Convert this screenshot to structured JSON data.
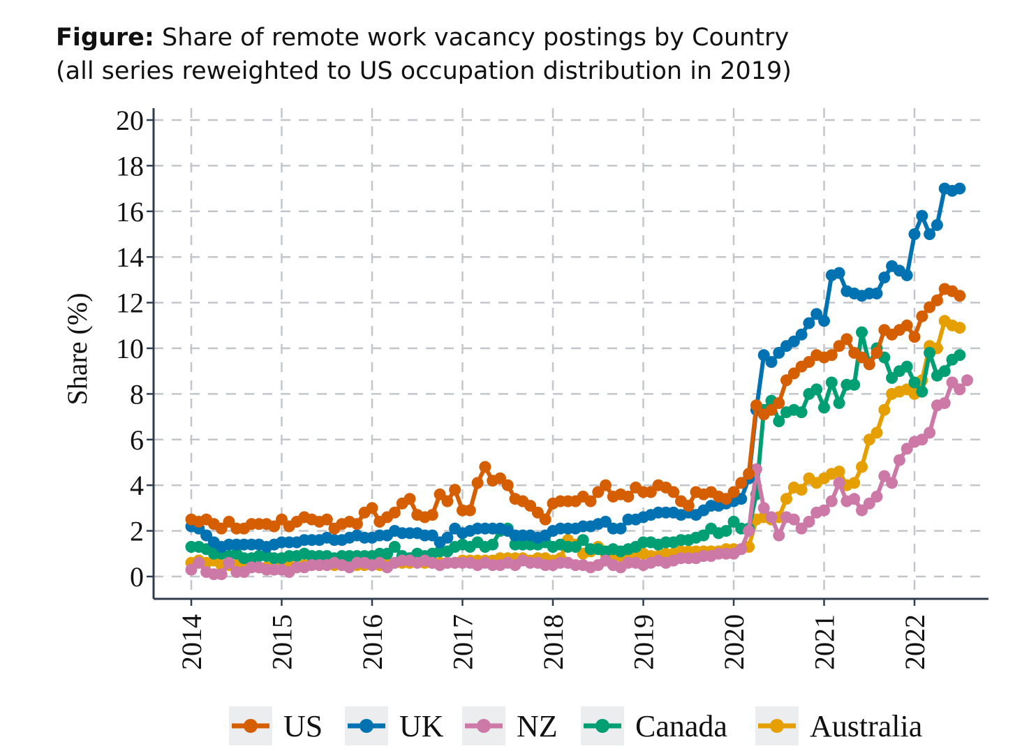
{
  "figure": {
    "title_prefix": "Figure:",
    "title_main": "Share of remote work vacancy postings by Country",
    "subtitle": "(all series reweighted to US occupation distribution in 2019)"
  },
  "chart_data": {
    "type": "line",
    "title": "Share of remote work vacancy postings by Country",
    "subtitle": "(all series reweighted to US occupation distribution in 2019)",
    "xlabel": "",
    "ylabel": "Share (%)",
    "xlim": [
      2014,
      2022.5
    ],
    "ylim": [
      0,
      20
    ],
    "x_ticks": [
      "2014",
      "2015",
      "2016",
      "2017",
      "2018",
      "2019",
      "2020",
      "2021",
      "2022"
    ],
    "y_ticks": [
      "0",
      "2",
      "4",
      "6",
      "8",
      "10",
      "12",
      "14",
      "16",
      "18",
      "20"
    ],
    "grid": true,
    "legend_position": "bottom",
    "x_frequency": "monthly",
    "x_start": "2014-01",
    "series": [
      {
        "name": "US",
        "color": "#d55e00",
        "values": [
          2.5,
          2.4,
          2.5,
          2.3,
          2.1,
          2.4,
          2.1,
          2.1,
          2.3,
          2.3,
          2.3,
          2.2,
          2.5,
          2.2,
          2.4,
          2.6,
          2.5,
          2.4,
          2.5,
          2.1,
          2.3,
          2.4,
          2.3,
          2.8,
          3.0,
          2.4,
          2.6,
          2.8,
          3.2,
          3.4,
          2.7,
          2.6,
          2.7,
          3.6,
          3.3,
          3.8,
          2.9,
          2.9,
          4.1,
          4.8,
          4.2,
          4.3,
          4.0,
          3.4,
          3.3,
          3.1,
          2.8,
          2.5,
          3.2,
          3.3,
          3.3,
          3.3,
          3.5,
          3.3,
          3.7,
          4.0,
          3.5,
          3.6,
          3.5,
          3.9,
          3.7,
          3.7,
          4.0,
          3.9,
          3.7,
          3.3,
          3.1,
          3.7,
          3.6,
          3.7,
          3.5,
          3.4,
          3.7,
          4.1,
          4.5,
          7.5,
          7.1,
          7.3,
          7.6,
          8.6,
          8.9,
          9.2,
          9.4,
          9.7,
          9.6,
          9.7,
          10.1,
          10.4,
          9.8,
          9.6,
          9.3,
          9.8,
          10.8,
          10.6,
          10.8,
          11.0,
          10.5,
          11.4,
          11.8,
          12.1,
          12.6,
          12.5,
          12.3
        ]
      },
      {
        "name": "UK",
        "color": "#0072b2",
        "values": [
          2.2,
          2.1,
          1.8,
          1.5,
          1.3,
          1.4,
          1.4,
          1.4,
          1.4,
          1.4,
          1.3,
          1.4,
          1.5,
          1.5,
          1.5,
          1.6,
          1.6,
          1.6,
          1.7,
          1.6,
          1.6,
          1.7,
          1.8,
          1.7,
          1.7,
          1.8,
          1.8,
          2.0,
          1.9,
          1.9,
          1.9,
          1.8,
          1.8,
          1.5,
          1.7,
          2.1,
          1.9,
          2.0,
          2.1,
          2.1,
          2.1,
          2.1,
          2.0,
          1.8,
          1.8,
          1.8,
          1.7,
          1.8,
          2.0,
          2.1,
          2.1,
          2.1,
          2.2,
          2.2,
          2.3,
          2.4,
          2.1,
          2.1,
          2.5,
          2.5,
          2.6,
          2.7,
          2.8,
          2.8,
          2.8,
          2.7,
          2.8,
          2.7,
          2.9,
          3.1,
          3.1,
          3.2,
          3.3,
          3.4,
          4.3,
          7.3,
          9.7,
          9.4,
          9.8,
          10.1,
          10.3,
          10.6,
          11.1,
          11.5,
          11.2,
          13.2,
          13.3,
          12.5,
          12.4,
          12.3,
          12.4,
          12.4,
          13.1,
          13.6,
          13.4,
          13.2,
          15.0,
          15.8,
          15.0,
          15.4,
          17.0,
          16.9,
          17.0
        ]
      },
      {
        "name": "NZ",
        "color": "#cc79a7",
        "values": [
          0.3,
          0.6,
          0.2,
          0.1,
          0.1,
          0.6,
          0.2,
          0.2,
          0.4,
          0.4,
          0.3,
          0.3,
          0.3,
          0.2,
          0.4,
          0.4,
          0.5,
          0.5,
          0.5,
          0.6,
          0.5,
          0.4,
          0.6,
          0.6,
          0.5,
          0.6,
          0.4,
          0.6,
          0.7,
          0.7,
          0.6,
          0.7,
          0.6,
          0.5,
          0.6,
          0.6,
          0.6,
          0.6,
          0.5,
          0.6,
          0.5,
          0.5,
          0.6,
          0.5,
          0.7,
          0.6,
          0.6,
          0.5,
          0.5,
          0.6,
          0.6,
          0.5,
          0.5,
          0.4,
          0.5,
          0.7,
          0.5,
          0.4,
          0.6,
          0.6,
          0.5,
          0.6,
          0.7,
          0.6,
          0.7,
          0.8,
          0.8,
          0.8,
          0.9,
          0.9,
          1.0,
          1.0,
          1.0,
          1.2,
          2.0,
          4.7,
          3.0,
          2.6,
          1.8,
          2.6,
          2.5,
          2.1,
          2.4,
          2.8,
          2.9,
          3.3,
          4.1,
          3.3,
          3.4,
          2.9,
          3.2,
          3.5,
          4.4,
          4.1,
          5.1,
          5.6,
          5.9,
          6.0,
          6.3,
          7.5,
          7.6,
          8.5,
          8.2,
          8.6
        ]
      },
      {
        "name": "Canada",
        "color": "#009e73",
        "values": [
          1.3,
          1.3,
          1.2,
          1.0,
          1.0,
          0.9,
          1.0,
          0.8,
          0.8,
          0.9,
          0.9,
          0.8,
          0.8,
          0.9,
          0.9,
          1.0,
          0.9,
          0.9,
          0.9,
          0.8,
          0.9,
          0.9,
          0.9,
          0.9,
          0.9,
          1.0,
          1.0,
          1.3,
          0.9,
          0.8,
          1.0,
          0.9,
          1.0,
          1.1,
          1.1,
          1.3,
          1.4,
          1.3,
          1.5,
          1.3,
          1.4,
          2.0,
          2.1,
          1.4,
          1.4,
          1.4,
          1.4,
          1.5,
          1.3,
          1.4,
          1.3,
          1.3,
          1.6,
          1.2,
          1.2,
          1.1,
          1.2,
          1.1,
          1.2,
          1.3,
          1.5,
          1.5,
          1.4,
          1.5,
          1.5,
          1.6,
          1.6,
          1.7,
          1.8,
          2.1,
          1.9,
          2.0,
          2.4,
          2.1,
          2.1,
          3.6,
          7.3,
          7.7,
          6.8,
          7.2,
          7.3,
          7.2,
          8.0,
          8.2,
          7.4,
          8.5,
          7.6,
          8.4,
          8.4,
          10.7,
          9.3,
          10.0,
          9.6,
          8.7,
          9.0,
          9.2,
          8.5,
          8.1,
          9.8,
          8.8,
          9.0,
          9.5,
          9.7
        ]
      },
      {
        "name": "Australia",
        "color": "#e69f00",
        "values": [
          0.6,
          0.7,
          0.6,
          0.7,
          0.5,
          0.5,
          0.5,
          0.6,
          0.5,
          0.4,
          0.4,
          0.4,
          0.4,
          0.5,
          0.4,
          0.5,
          0.5,
          0.5,
          0.5,
          0.5,
          0.5,
          0.5,
          0.5,
          0.5,
          0.5,
          0.5,
          0.6,
          0.6,
          0.6,
          0.6,
          0.7,
          0.6,
          0.6,
          0.6,
          0.6,
          0.6,
          0.7,
          0.7,
          0.7,
          0.7,
          0.7,
          0.8,
          0.8,
          0.8,
          0.8,
          0.7,
          0.8,
          0.8,
          0.7,
          0.8,
          1.6,
          1.4,
          1.0,
          1.1,
          1.3,
          1.0,
          0.9,
          0.9,
          1.0,
          1.0,
          1.0,
          0.9,
          0.9,
          1.0,
          1.0,
          1.1,
          1.1,
          1.1,
          1.1,
          1.1,
          1.1,
          1.2,
          1.2,
          1.2,
          1.3,
          2.5,
          2.6,
          2.5,
          2.6,
          3.4,
          3.9,
          3.8,
          4.3,
          4.1,
          4.3,
          4.5,
          4.6,
          4.0,
          4.1,
          4.8,
          6.0,
          6.3,
          7.3,
          8.0,
          8.1,
          8.2,
          8.0,
          8.6,
          10.1,
          10.0,
          11.2,
          11.0,
          10.9
        ]
      }
    ]
  }
}
